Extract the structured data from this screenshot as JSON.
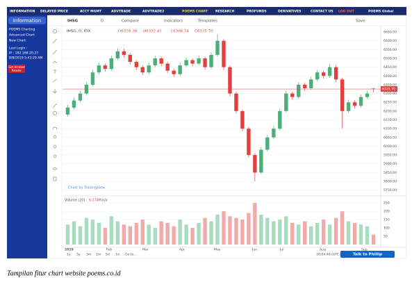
{
  "nav": [
    "INFORMATION",
    "DELAYED PRICE",
    "ACCT MGMT",
    "ADVTRADE",
    "ADVTRADE2",
    "POEMS CHART",
    "RESEARCH",
    "PROFUNDS",
    "DERIVATIVES",
    "CONTACT US",
    "LOG OUT",
    "POEMS Global"
  ],
  "sidebar": {
    "header": "Information",
    "items": [
      "POEMS Charting",
      "Advanced Chart",
      "New Chart"
    ],
    "login": [
      "Last Login :",
      "IP : 182.168.20.27",
      "8/8/2019 5:43:29 AM"
    ],
    "badge": [
      "Get Acrobat",
      "Reader"
    ]
  },
  "toolbar": {
    "symbol": "IHSG",
    "interval": "D",
    "compare": "Compare",
    "indicators": "Indicators",
    "templates": "Templates",
    "save": "Save"
  },
  "chart_data": {
    "type": "candlestick",
    "legend_symbol": "IHSG, D, IDX",
    "legend_values": [
      "O6328.28",
      "H6332.41",
      "L6306.74",
      "C6325.70"
    ],
    "last_label": "6325.70",
    "watermark": "Chart by TradingView",
    "up_color": "#4caf7a",
    "down_color": "#e2403f",
    "candles": [
      {
        "open": 6180,
        "high": 6235,
        "low": 6170,
        "close": 6220
      },
      {
        "open": 6220,
        "high": 6275,
        "low": 6210,
        "close": 6260
      },
      {
        "open": 6260,
        "high": 6315,
        "low": 6250,
        "close": 6300
      },
      {
        "open": 6300,
        "high": 6365,
        "low": 6290,
        "close": 6350
      },
      {
        "open": 6350,
        "high": 6435,
        "low": 6340,
        "close": 6420
      },
      {
        "open": 6420,
        "high": 6475,
        "low": 6410,
        "close": 6460
      },
      {
        "open": 6460,
        "high": 6470,
        "low": 6425,
        "close": 6440
      },
      {
        "open": 6440,
        "high": 6515,
        "low": 6430,
        "close": 6500
      },
      {
        "open": 6500,
        "high": 6555,
        "low": 6490,
        "close": 6540
      },
      {
        "open": 6540,
        "high": 6555,
        "low": 6505,
        "close": 6520
      },
      {
        "open": 6520,
        "high": 6530,
        "low": 6465,
        "close": 6480
      },
      {
        "open": 6480,
        "high": 6490,
        "low": 6435,
        "close": 6450
      },
      {
        "open": 6450,
        "high": 6460,
        "low": 6405,
        "close": 6420
      },
      {
        "open": 6420,
        "high": 6475,
        "low": 6410,
        "close": 6460
      },
      {
        "open": 6460,
        "high": 6515,
        "low": 6450,
        "close": 6500
      },
      {
        "open": 6500,
        "high": 6510,
        "low": 6455,
        "close": 6470
      },
      {
        "open": 6470,
        "high": 6480,
        "low": 6415,
        "close": 6430
      },
      {
        "open": 6430,
        "high": 6440,
        "low": 6395,
        "close": 6410
      },
      {
        "open": 6410,
        "high": 6475,
        "low": 6400,
        "close": 6460
      },
      {
        "open": 6460,
        "high": 6505,
        "low": 6450,
        "close": 6490
      },
      {
        "open": 6490,
        "high": 6500,
        "low": 6455,
        "close": 6470
      },
      {
        "open": 6470,
        "high": 6515,
        "low": 6460,
        "close": 6500
      },
      {
        "open": 6500,
        "high": 6510,
        "low": 6435,
        "close": 6450
      },
      {
        "open": 6450,
        "high": 6535,
        "low": 6440,
        "close": 6520
      },
      {
        "open": 6520,
        "high": 6640,
        "low": 6510,
        "close": 6600
      },
      {
        "open": 6600,
        "high": 6610,
        "low": 6435,
        "close": 6450
      },
      {
        "open": 6450,
        "high": 6460,
        "low": 6285,
        "close": 6300
      },
      {
        "open": 6300,
        "high": 6310,
        "low": 6185,
        "close": 6200
      },
      {
        "open": 6200,
        "high": 6210,
        "low": 6085,
        "close": 6100
      },
      {
        "open": 6100,
        "high": 6110,
        "low": 5935,
        "close": 5950
      },
      {
        "open": 5950,
        "high": 5960,
        "low": 5800,
        "close": 5850
      },
      {
        "open": 5850,
        "high": 5995,
        "low": 5840,
        "close": 5980
      },
      {
        "open": 5980,
        "high": 6065,
        "low": 5970,
        "close": 6050
      },
      {
        "open": 6050,
        "high": 6115,
        "low": 6040,
        "close": 6100
      },
      {
        "open": 6100,
        "high": 6215,
        "low": 6090,
        "close": 6200
      },
      {
        "open": 6200,
        "high": 6315,
        "low": 6190,
        "close": 6300
      },
      {
        "open": 6300,
        "high": 6310,
        "low": 6265,
        "close": 6280
      },
      {
        "open": 6280,
        "high": 6365,
        "low": 6270,
        "close": 6350
      },
      {
        "open": 6350,
        "high": 6360,
        "low": 6315,
        "close": 6330
      },
      {
        "open": 6330,
        "high": 6395,
        "low": 6320,
        "close": 6380
      },
      {
        "open": 6380,
        "high": 6435,
        "low": 6370,
        "close": 6420
      },
      {
        "open": 6420,
        "high": 6430,
        "low": 6385,
        "close": 6400
      },
      {
        "open": 6400,
        "high": 6470,
        "low": 6390,
        "close": 6450
      },
      {
        "open": 6450,
        "high": 6460,
        "low": 6365,
        "close": 6380
      },
      {
        "open": 6380,
        "high": 6390,
        "low": 6100,
        "close": 6200
      },
      {
        "open": 6200,
        "high": 6265,
        "low": 6190,
        "close": 6250
      },
      {
        "open": 6250,
        "high": 6260,
        "low": 6215,
        "close": 6230
      },
      {
        "open": 6230,
        "high": 6295,
        "low": 6220,
        "close": 6280
      },
      {
        "open": 6280,
        "high": 6315,
        "low": 6270,
        "close": 6300
      },
      {
        "open": 6328.28,
        "high": 6332.41,
        "low": 6306.74,
        "close": 6325.7
      }
    ],
    "ylim": [
      5725,
      6682
    ],
    "yticks": [
      {
        "value": 5750,
        "label": "5750.00"
      },
      {
        "value": 5800,
        "label": "5800.00"
      },
      {
        "value": 5850,
        "label": "5850.00"
      },
      {
        "value": 5900,
        "label": "5900.00"
      },
      {
        "value": 5950,
        "label": "5950.00"
      },
      {
        "value": 6000,
        "label": "6000.00"
      },
      {
        "value": 6050,
        "label": "6050.00"
      },
      {
        "value": 6100,
        "label": "6100.00"
      },
      {
        "value": 6150,
        "label": "6150.00"
      },
      {
        "value": 6200,
        "label": "6200.00"
      },
      {
        "value": 6250,
        "label": "6250.00"
      },
      {
        "value": 6300,
        "label": "6300.00"
      },
      {
        "value": 6350,
        "label": "6350.00"
      },
      {
        "value": 6400,
        "label": "6400.00"
      },
      {
        "value": 6450,
        "label": "6450.00"
      },
      {
        "value": 6500,
        "label": "6500.00"
      },
      {
        "value": 6550,
        "label": "6550.00"
      },
      {
        "value": 6600,
        "label": "6600.00"
      },
      {
        "value": 6650,
        "label": "6650.00"
      }
    ],
    "volume": {
      "title": "Volume (20)",
      "last": "6.174M",
      "ma": "n/a",
      "values": [
        120,
        140,
        110,
        160,
        150,
        130,
        100,
        170,
        140,
        120,
        110,
        130,
        150,
        120,
        100,
        140,
        130,
        110,
        150,
        120,
        100,
        130,
        160,
        140,
        180,
        200,
        170,
        160,
        150,
        190,
        250,
        180,
        160,
        140,
        150,
        170,
        130,
        120,
        140,
        110,
        130,
        150,
        120,
        160,
        200,
        140,
        130,
        120,
        110,
        60
      ],
      "ylim": [
        0,
        280
      ],
      "yticks": [
        50,
        100,
        150,
        200,
        250
      ]
    },
    "x_labels": [
      "2019",
      "Feb",
      "Mar",
      "Apr",
      "May",
      "Jun",
      "Jul",
      "Aug",
      "Sep"
    ]
  },
  "footer": {
    "ranges": [
      "1y",
      "5y",
      "3m",
      "1m",
      "5d",
      "1d",
      "Go to..."
    ],
    "time": "10:04:46 (UTC+7)",
    "button": "Talk to Phillip"
  },
  "caption": "Tampilan fitur chart website poems.co.id"
}
